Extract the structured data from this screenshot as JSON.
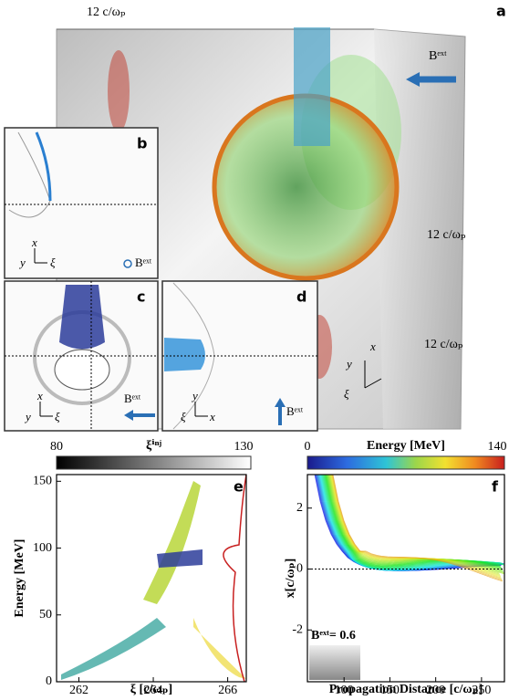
{
  "panel_a": {
    "label": "a",
    "dims": [
      "12 c/ωₚ",
      "12 c/ωₚ",
      "12 c/ωₚ"
    ],
    "field": "Bᵉˣᵗ",
    "axes": [
      "y",
      "x",
      "ξ"
    ]
  },
  "panel_b": {
    "label": "b",
    "axes": [
      "x",
      "y",
      "ξ"
    ],
    "field": "Bᵉˣᵗ"
  },
  "panel_c": {
    "label": "c",
    "axes": [
      "x",
      "y",
      "ξ"
    ],
    "field": "Bᵉˣᵗ"
  },
  "panel_d": {
    "label": "d",
    "axes": [
      "y",
      "ξ",
      "x"
    ],
    "field": "Bᵉˣᵗ"
  },
  "chart_data": [
    {
      "type": "density",
      "label": "e",
      "colorbar": {
        "title": "ξⁱⁿʲ",
        "clim": [
          80,
          130
        ]
      },
      "xlabel": "ξ [c/ωₚ]",
      "ylabel": "Energy [MeV]",
      "xlim": [
        261.4,
        266.5
      ],
      "xticks": [
        262,
        264,
        266
      ],
      "ylim": [
        0,
        155
      ],
      "yticks": [
        0,
        50,
        100,
        150
      ]
    },
    {
      "type": "trajectories",
      "label": "f",
      "colorbar": {
        "title": "Energy [MeV]",
        "clim": [
          0,
          140
        ]
      },
      "xlabel": "Propagation Distance [c/ωₚ]",
      "ylabel": "x[c/ωₚ]",
      "xlim": [
        60,
        275
      ],
      "xticks": [
        100,
        150,
        200,
        250
      ],
      "ylim": [
        -3.7,
        3.1
      ],
      "yticks": [
        -2,
        0,
        2
      ],
      "annotation": "Bᵉˣᵗ= 0.6"
    }
  ]
}
